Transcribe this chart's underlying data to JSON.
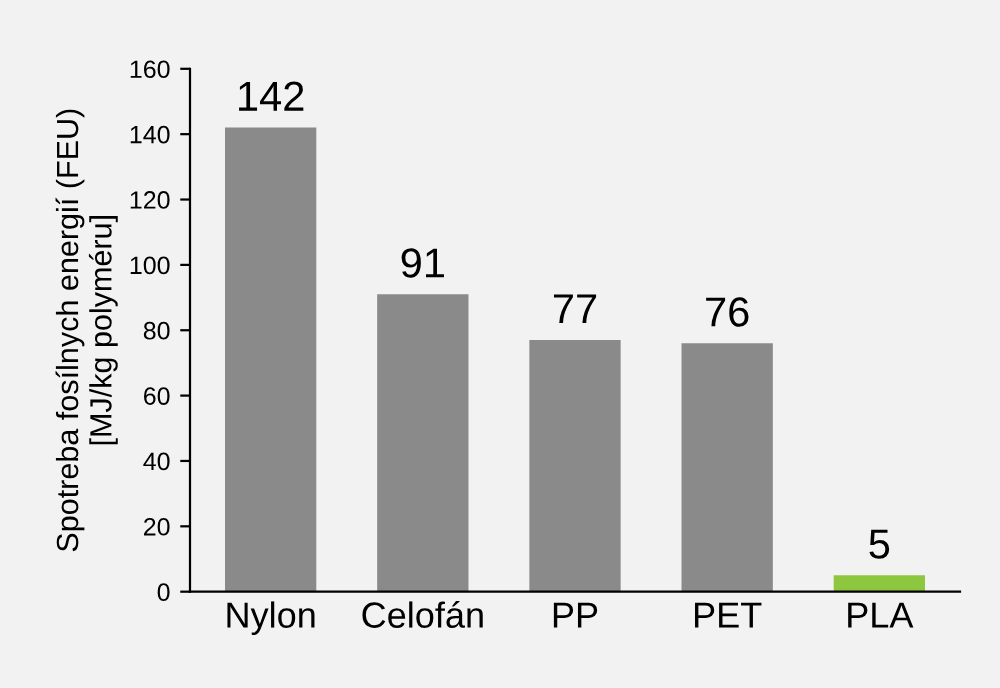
{
  "chart_data": {
    "type": "bar",
    "ylabel": "Spotreba fosílnych energií (FEU)\n[MJ/kg polyméru]",
    "categories": [
      "Nylon",
      "Celofán",
      "PP",
      "PET",
      "PLA"
    ],
    "values": [
      142,
      91,
      77,
      76,
      5
    ],
    "colors": [
      "#8a8a8a",
      "#8a8a8a",
      "#8a8a8a",
      "#8a8a8a",
      "#8dc63f"
    ],
    "ylim": [
      0,
      160
    ],
    "yticks": [
      0,
      20,
      40,
      60,
      80,
      100,
      120,
      140,
      160
    ],
    "data_labels": true,
    "grid": false,
    "legend": false
  }
}
